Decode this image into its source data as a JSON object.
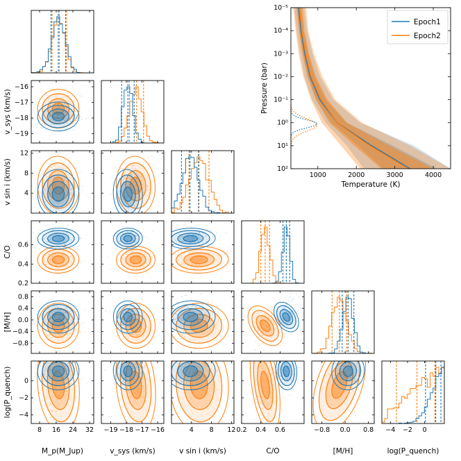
{
  "colors": {
    "epoch1": "#1f77b4",
    "epoch2": "#ff7f0e"
  },
  "chart_data": [
    {
      "type": "corner",
      "title": "",
      "legend": [
        "Epoch1",
        "Epoch2"
      ],
      "params": [
        {
          "key": "mp",
          "label": "M_p(M_Jup)",
          "range": [
            4,
            34
          ],
          "ticks": [
            8,
            16,
            24,
            32
          ],
          "tick_labels": [
            "8",
            "16",
            "24",
            "32"
          ],
          "epoch1": {
            "mean": 17.0,
            "sd": 3.2,
            "q": [
              13.5,
              17.0,
              20.5
            ]
          },
          "epoch2": {
            "mean": 17.0,
            "sd": 3.2,
            "q": [
              14.0,
              17.5,
              21.0
            ]
          }
        },
        {
          "key": "vsys",
          "label": "v_sys (km/s)",
          "range": [
            -19.6,
            -15.6
          ],
          "ticks": [
            -19,
            -18,
            -17,
            -16
          ],
          "tick_labels": [
            "−19",
            "−18",
            "−17",
            "−16"
          ],
          "epoch1": {
            "mean": -17.9,
            "sd": 0.3,
            "q": [
              -18.3,
              -17.9,
              -17.5
            ]
          },
          "epoch2": {
            "mean": -17.4,
            "sd": 0.4,
            "q": [
              -17.8,
              -17.35,
              -16.9
            ]
          }
        },
        {
          "key": "vsini",
          "label": "v sin i (km/s)",
          "range": [
            0,
            12.5
          ],
          "ticks": [
            4,
            8,
            12
          ],
          "tick_labels": [
            "4",
            "8",
            "12"
          ],
          "epoch1": {
            "mean": 3.8,
            "sd": 1.6,
            "q": [
              2.0,
              3.7,
              5.4
            ]
          },
          "epoch2": {
            "mean": 5.5,
            "sd": 1.9,
            "q": [
              3.5,
              5.5,
              7.5
            ]
          }
        },
        {
          "key": "co",
          "label": "C/O",
          "range": [
            0.2,
            0.85
          ],
          "ticks": [
            0.2,
            0.4,
            0.6
          ],
          "tick_labels": [
            "0.2",
            "0.4",
            "0.6"
          ],
          "epoch1": {
            "mean": 0.665,
            "sd": 0.035,
            "q": [
              0.63,
              0.665,
              0.7
            ]
          },
          "epoch2": {
            "mean": 0.445,
            "sd": 0.045,
            "q": [
              0.4,
              0.445,
              0.49
            ]
          }
        },
        {
          "key": "mh",
          "label": "[M/H]",
          "range": [
            -1.15,
            1.0
          ],
          "ticks": [
            -0.8,
            -0.4,
            0.0,
            0.4,
            0.8
          ],
          "tick_labels": [
            "−0.8",
            "−0.4",
            "0.0",
            "0.4",
            "0.8"
          ],
          "x_ticks": [
            -0.8,
            0.0,
            0.8
          ],
          "x_tick_labels": [
            "−0.8",
            "0.0",
            "0.8"
          ],
          "epoch1": {
            "mean": 0.1,
            "sd": 0.18,
            "q": [
              -0.1,
              0.1,
              0.3
            ]
          },
          "epoch2": {
            "mean": -0.2,
            "sd": 0.25,
            "q": [
              -0.45,
              -0.2,
              0.05
            ]
          }
        },
        {
          "key": "pq",
          "label": "log(P_quench)",
          "range": [
            -5,
            2.3
          ],
          "ticks": [
            -4,
            -2,
            0
          ],
          "tick_labels": [
            "−4",
            "−2",
            "0"
          ],
          "x_ticks": [
            -4,
            -2,
            0
          ],
          "x_tick_labels": [
            "−4",
            "−2",
            "0"
          ],
          "epoch1": {
            "mean": 1.1,
            "sd": 0.7,
            "q": [
              0.1,
              1.3,
              1.9
            ]
          },
          "epoch2": {
            "mean": -0.5,
            "sd": 1.8,
            "q": [
              -3.3,
              -0.9,
              1.2
            ]
          }
        }
      ]
    },
    {
      "type": "line",
      "title": "",
      "xlabel": "Temperature (K)",
      "ylabel": "Pressure (bar)",
      "xlim": [
        300,
        4450
      ],
      "ylim_log10": [
        -5,
        2
      ],
      "y_inverted": true,
      "x_ticks": [
        1000,
        2000,
        3000,
        4000
      ],
      "x_tick_labels": [
        "1000",
        "2000",
        "3000",
        "4000"
      ],
      "y_ticks": [
        -5,
        -4,
        -3,
        -2,
        -1,
        0,
        1,
        2
      ],
      "y_tick_labels": [
        "10⁻⁵",
        "10⁻⁴",
        "10⁻³",
        "10⁻²",
        "10⁻¹",
        "10⁰",
        "10¹",
        "10²"
      ],
      "legend": [
        {
          "name": "Epoch1",
          "color": "#1f77b4"
        },
        {
          "name": "Epoch2",
          "color": "#ff7f0e"
        }
      ],
      "series": [
        {
          "name": "Epoch1",
          "logP": [
            -5,
            -4,
            -3,
            -2,
            -1,
            0,
            1,
            2
          ],
          "T_median": [
            500,
            560,
            660,
            800,
            1050,
            1500,
            2400,
            3400
          ],
          "T_1sigma_low": [
            450,
            520,
            610,
            740,
            960,
            1350,
            2050,
            2700
          ],
          "T_1sigma_high": [
            560,
            630,
            750,
            920,
            1200,
            1750,
            2950,
            4100
          ],
          "T_2sigma_low": [
            380,
            450,
            540,
            650,
            850,
            1200,
            1750,
            2200
          ],
          "T_2sigma_high": [
            650,
            720,
            860,
            1060,
            1400,
            2100,
            3500,
            4450
          ]
        },
        {
          "name": "Epoch2",
          "logP": [
            -5,
            -4,
            -3,
            -2,
            -1,
            0,
            1,
            2
          ],
          "T_median": [
            520,
            580,
            680,
            820,
            1080,
            1500,
            2350,
            3350
          ],
          "T_1sigma_low": [
            450,
            510,
            600,
            730,
            950,
            1300,
            1950,
            2650
          ],
          "T_1sigma_high": [
            600,
            650,
            770,
            950,
            1250,
            1760,
            2850,
            4000
          ],
          "T_2sigma_low": [
            360,
            420,
            500,
            620,
            820,
            1100,
            1600,
            2100
          ],
          "T_2sigma_high": [
            700,
            750,
            900,
            1120,
            1450,
            2150,
            3400,
            4450
          ]
        }
      ],
      "contribution_functions": [
        {
          "name": "Epoch1",
          "style": "dotted",
          "peak_logP": 0.05,
          "width": 0.35
        },
        {
          "name": "Epoch2",
          "style": "dotted",
          "peak_logP": 0.1,
          "width": 0.55
        }
      ]
    }
  ]
}
